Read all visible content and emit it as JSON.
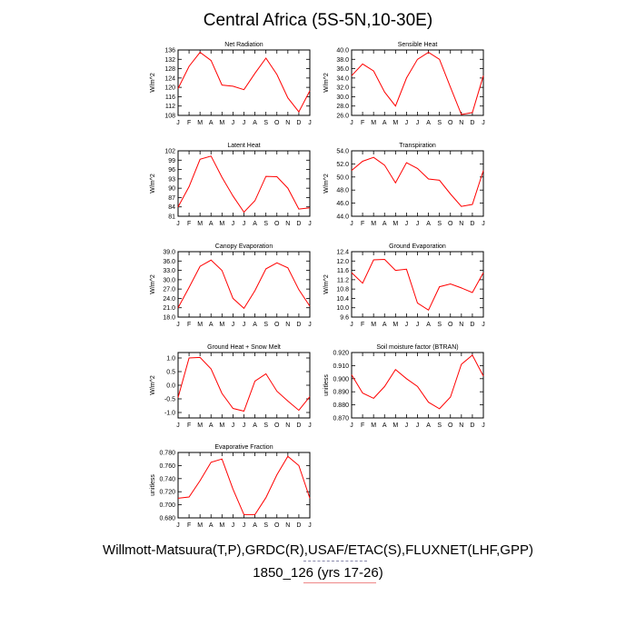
{
  "page": {
    "title": "Central Africa (5S-5N,10-30E)",
    "footer_line1": "Willmott-Matsuura(T,P),GRDC(R),USAF/ETAC(S),FLUXNET(LHF,GPP)",
    "footer_line2": "1850_126 (yrs 17-26)"
  },
  "colors": {
    "series": "#ff0000",
    "axis": "#000000"
  },
  "chart_data": [
    {
      "type": "line",
      "title": "Net Radiation",
      "ylabel": "W/m^2",
      "categories": [
        "J",
        "F",
        "M",
        "A",
        "M",
        "J",
        "J",
        "A",
        "S",
        "O",
        "N",
        "D",
        "J"
      ],
      "yticks": [
        "108",
        "112",
        "116",
        "120",
        "124",
        "128",
        "132",
        "136"
      ],
      "ylim": [
        108,
        136
      ],
      "values": [
        119.5,
        129,
        135,
        131.5,
        121,
        120.5,
        119,
        126,
        132.5,
        125.5,
        115.5,
        109.5,
        118.5
      ]
    },
    {
      "type": "line",
      "title": "Sensible Heat",
      "ylabel": "W/m^2",
      "categories": [
        "J",
        "F",
        "M",
        "A",
        "M",
        "J",
        "J",
        "A",
        "S",
        "O",
        "N",
        "D",
        "J"
      ],
      "yticks": [
        "26.0",
        "28.0",
        "30.0",
        "32.0",
        "34.0",
        "36.0",
        "38.0",
        "40.0"
      ],
      "ylim": [
        26,
        40
      ],
      "values": [
        34.5,
        37,
        35.5,
        31,
        28,
        34,
        38,
        39.5,
        38,
        32,
        26.2,
        26.6,
        34.5
      ]
    },
    {
      "type": "line",
      "title": "Latent Heat",
      "ylabel": "W/m^2",
      "categories": [
        "J",
        "F",
        "M",
        "A",
        "M",
        "J",
        "J",
        "A",
        "S",
        "O",
        "N",
        "D",
        "J"
      ],
      "yticks": [
        "81",
        "84",
        "87",
        "90",
        "93",
        "96",
        "99",
        "102"
      ],
      "ylim": [
        81,
        102
      ],
      "values": [
        84,
        90.5,
        99.3,
        100.3,
        93.5,
        87.5,
        82.3,
        86,
        93.8,
        93.7,
        90,
        83.3,
        83.7
      ]
    },
    {
      "type": "line",
      "title": "Transpiration",
      "ylabel": "W/m^2",
      "categories": [
        "J",
        "F",
        "M",
        "A",
        "M",
        "J",
        "J",
        "A",
        "S",
        "O",
        "N",
        "D",
        "J"
      ],
      "yticks": [
        "44.0",
        "46.0",
        "48.0",
        "50.0",
        "52.0",
        "54.0"
      ],
      "ylim": [
        44,
        54
      ],
      "values": [
        51,
        52.4,
        53,
        51.8,
        49.1,
        52.2,
        51.3,
        49.7,
        49.5,
        47.4,
        45.5,
        45.8,
        51
      ]
    },
    {
      "type": "line",
      "title": "Canopy Evaporation",
      "ylabel": "W/m^2",
      "categories": [
        "J",
        "F",
        "M",
        "A",
        "M",
        "J",
        "J",
        "A",
        "S",
        "O",
        "N",
        "D",
        "J"
      ],
      "yticks": [
        "18.0",
        "21.0",
        "24.0",
        "27.0",
        "30.0",
        "33.0",
        "36.0",
        "39.0"
      ],
      "ylim": [
        18,
        39
      ],
      "values": [
        21,
        27.5,
        34.3,
        36.3,
        33,
        24,
        20.8,
        26.5,
        33.5,
        35.4,
        33.8,
        26.8,
        21.5
      ]
    },
    {
      "type": "line",
      "title": "Ground Evaporation",
      "ylabel": "W/m^2",
      "categories": [
        "J",
        "F",
        "M",
        "A",
        "M",
        "J",
        "J",
        "A",
        "S",
        "O",
        "N",
        "D",
        "J"
      ],
      "yticks": [
        "9.6",
        "10.0",
        "10.4",
        "10.8",
        "11.2",
        "11.6",
        "12.0",
        "12.4"
      ],
      "ylim": [
        9.6,
        12.4
      ],
      "values": [
        11.5,
        11.05,
        12.05,
        12.07,
        11.6,
        11.65,
        10.2,
        9.9,
        10.9,
        11.02,
        10.85,
        10.65,
        11.5
      ]
    },
    {
      "type": "line",
      "title": "Ground Heat + Snow Melt",
      "ylabel": "W/m^2",
      "categories": [
        "J",
        "F",
        "M",
        "A",
        "M",
        "J",
        "J",
        "A",
        "S",
        "O",
        "N",
        "D",
        "J"
      ],
      "yticks": [
        "-1.0",
        "-0.5",
        "0.0",
        "0.5",
        "1.0"
      ],
      "ylim": [
        -1.2,
        1.2
      ],
      "values": [
        -0.45,
        1.0,
        1.02,
        0.6,
        -0.3,
        -0.85,
        -0.95,
        0.15,
        0.42,
        -0.22,
        -0.58,
        -0.92,
        -0.42
      ]
    },
    {
      "type": "line",
      "title": "Soil moisture factor (BTRAN)",
      "ylabel": "unitless",
      "categories": [
        "J",
        "F",
        "M",
        "A",
        "M",
        "J",
        "J",
        "A",
        "S",
        "O",
        "N",
        "D",
        "J"
      ],
      "yticks": [
        "0.870",
        "0.880",
        "0.890",
        "0.900",
        "0.910",
        "0.920"
      ],
      "ylim": [
        0.87,
        0.92
      ],
      "values": [
        0.903,
        0.889,
        0.885,
        0.894,
        0.907,
        0.9,
        0.894,
        0.882,
        0.877,
        0.886,
        0.911,
        0.918,
        0.902
      ]
    },
    {
      "type": "line",
      "title": "Evaporative Fraction",
      "ylabel": "unitless",
      "categories": [
        "J",
        "F",
        "M",
        "A",
        "M",
        "J",
        "J",
        "A",
        "S",
        "O",
        "N",
        "D",
        "J"
      ],
      "yticks": [
        "0.680",
        "0.700",
        "0.720",
        "0.740",
        "0.760",
        "0.780"
      ],
      "ylim": [
        0.68,
        0.78
      ],
      "values": [
        0.71,
        0.712,
        0.737,
        0.765,
        0.77,
        0.724,
        0.685,
        0.685,
        0.711,
        0.746,
        0.774,
        0.76,
        0.71
      ]
    }
  ]
}
